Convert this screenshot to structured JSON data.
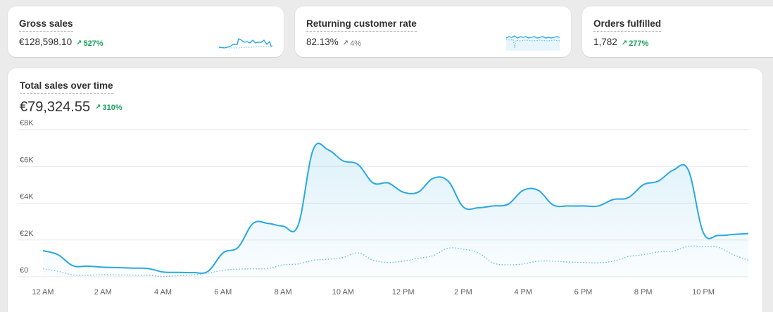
{
  "kpis": [
    {
      "title": "Gross sales",
      "value": "€128,598.10",
      "delta": "527%",
      "trend": "up"
    },
    {
      "title": "Returning customer rate",
      "value": "82.13%",
      "delta": "4%",
      "trend": "neutral"
    },
    {
      "title": "Orders fulfilled",
      "value": "1,782",
      "delta": "277%",
      "trend": "up"
    }
  ],
  "main": {
    "title": "Total sales over time",
    "value": "€79,324.55",
    "delta": "310%"
  },
  "colors": {
    "primary": "#29a8e0",
    "comparison": "#5bbde8",
    "positive": "#18a05a",
    "grid": "#e6e6e6"
  },
  "chart_data": {
    "type": "area",
    "xlabel": "",
    "ylabel": "",
    "ylim": [
      0,
      8000
    ],
    "ytick_labels": [
      "€0",
      "€2K",
      "€4K",
      "€6K",
      "€8K"
    ],
    "ytick_values": [
      0,
      2000,
      4000,
      6000,
      8000
    ],
    "xlim": [
      0,
      23.5
    ],
    "xtick_labels": [
      "12 AM",
      "2 AM",
      "4 AM",
      "6 AM",
      "8 AM",
      "10 AM",
      "12 PM",
      "2 PM",
      "4 PM",
      "6 PM",
      "8 PM",
      "10 PM"
    ],
    "xtick_values": [
      0,
      2,
      4,
      6,
      8,
      10,
      12,
      14,
      16,
      18,
      20,
      22
    ],
    "grid": true,
    "series": [
      {
        "style": "solid-area",
        "x": [
          0,
          0.5,
          1,
          1.5,
          2,
          2.5,
          3,
          3.5,
          4,
          4.5,
          5,
          5.5,
          6,
          6.5,
          7,
          7.5,
          8,
          8.5,
          9,
          9.5,
          10,
          10.5,
          11,
          11.5,
          12,
          12.5,
          13,
          13.5,
          14,
          14.5,
          15,
          15.5,
          16,
          16.5,
          17,
          17.5,
          18,
          18.5,
          19,
          19.5,
          20,
          20.5,
          21,
          21.5,
          22,
          22.5,
          23,
          23.5
        ],
        "values": [
          1420,
          1200,
          600,
          580,
          520,
          500,
          470,
          450,
          260,
          240,
          230,
          300,
          1300,
          1600,
          2900,
          2900,
          2750,
          2800,
          6900,
          6900,
          6300,
          6100,
          5100,
          5100,
          4600,
          4600,
          5350,
          5200,
          3800,
          3750,
          3850,
          3950,
          4700,
          4700,
          3900,
          3850,
          3850,
          3850,
          4200,
          4300,
          5000,
          5200,
          5800,
          5800,
          2400,
          2250,
          2300,
          2350
        ]
      },
      {
        "style": "dotted",
        "x": [
          0,
          0.5,
          1,
          1.5,
          2,
          2.5,
          3,
          3.5,
          4,
          4.5,
          5,
          5.5,
          6,
          6.5,
          7,
          7.5,
          8,
          8.5,
          9,
          9.5,
          10,
          10.5,
          11,
          11.5,
          12,
          12.5,
          13,
          13.5,
          14,
          14.5,
          15,
          15.5,
          16,
          16.5,
          17,
          17.5,
          18,
          18.5,
          19,
          19.5,
          20,
          20.5,
          21,
          21.5,
          22,
          22.5,
          23,
          23.5
        ],
        "values": [
          430,
          300,
          100,
          80,
          120,
          100,
          90,
          80,
          20,
          60,
          100,
          200,
          350,
          420,
          430,
          450,
          650,
          700,
          900,
          950,
          1050,
          1300,
          900,
          780,
          850,
          1000,
          1150,
          1550,
          1500,
          1300,
          750,
          650,
          700,
          850,
          850,
          800,
          780,
          760,
          850,
          1100,
          1200,
          1350,
          1400,
          1650,
          1650,
          1600,
          1200,
          900
        ]
      }
    ]
  }
}
